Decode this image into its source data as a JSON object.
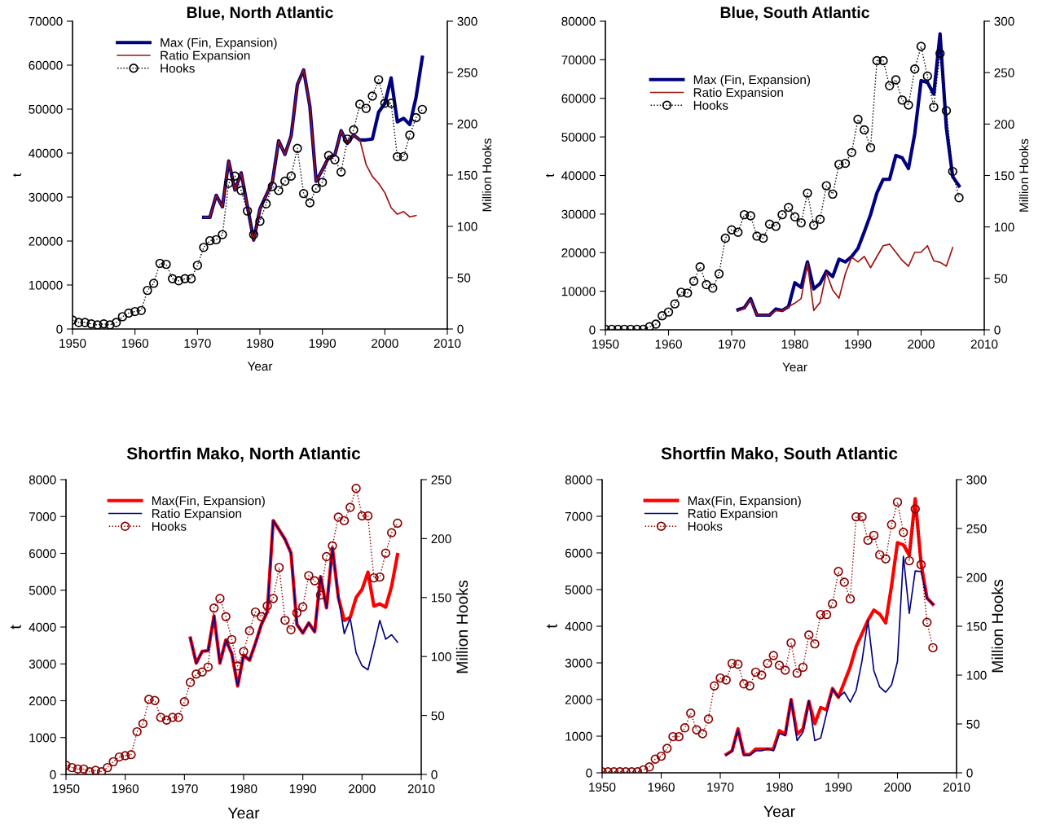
{
  "chart_data": [
    {
      "type": "line",
      "title": "Blue, North Atlantic",
      "xlabel": "Year",
      "ylabel": "t",
      "y2label": "Million Hooks",
      "xlim": [
        1950,
        2010
      ],
      "xticks": [
        1950,
        1960,
        1970,
        1980,
        1990,
        2000,
        2010
      ],
      "ylim": [
        0,
        70000
      ],
      "yticks": [
        0,
        10000,
        20000,
        30000,
        40000,
        50000,
        60000,
        70000
      ],
      "y2lim": [
        0,
        300
      ],
      "y2ticks": [
        0,
        50,
        100,
        150,
        200,
        250,
        300
      ],
      "grid": false,
      "legend": "top left",
      "series": [
        {
          "name": "Max (Fin, Expansion)",
          "color": "#000080",
          "line_style": "solid",
          "marker": "none",
          "x": [
            1971,
            1972,
            1973,
            1974,
            1975,
            1976,
            1977,
            1978,
            1979,
            1980,
            1981,
            1982,
            1983,
            1984,
            1985,
            1986,
            1987,
            1988,
            1989,
            1990,
            1991,
            1992,
            1993,
            1994,
            1995,
            1996,
            1997,
            1998,
            1999,
            2000,
            2001,
            2002,
            2003,
            2004,
            2005,
            2006
          ],
          "values": [
            25400,
            25400,
            30400,
            27800,
            38200,
            31600,
            35500,
            27900,
            20200,
            27300,
            30400,
            33500,
            42800,
            39700,
            43900,
            55600,
            58900,
            50600,
            33600,
            36200,
            39000,
            39600,
            45100,
            42200,
            44100,
            43000,
            43000,
            43200,
            49300,
            51300,
            57100,
            47100,
            47900,
            46500,
            52700,
            61800
          ]
        },
        {
          "name": "Ratio Expansion",
          "color": "#a01010",
          "line_style": "solid",
          "marker": "none",
          "x": [
            1971,
            1972,
            1973,
            1974,
            1975,
            1976,
            1977,
            1978,
            1979,
            1980,
            1981,
            1982,
            1983,
            1984,
            1985,
            1986,
            1987,
            1988,
            1989,
            1990,
            1991,
            1992,
            1993,
            1994,
            1995,
            1996,
            1997,
            1998,
            1999,
            2000,
            2001,
            2002,
            2003,
            2004,
            2005
          ],
          "values": [
            25400,
            25400,
            30400,
            27800,
            38200,
            31600,
            35500,
            27900,
            20000,
            27300,
            30400,
            33500,
            42800,
            39700,
            43900,
            55600,
            58900,
            50600,
            33600,
            36200,
            39000,
            39600,
            45100,
            42200,
            44100,
            43000,
            37400,
            34700,
            33100,
            31000,
            27600,
            26100,
            26700,
            25500,
            25800
          ]
        },
        {
          "name": "Hooks",
          "color": "#000000",
          "axis": "y2",
          "line_style": "dotted",
          "marker": "circle",
          "x": [
            1950,
            1951,
            1952,
            1953,
            1954,
            1955,
            1956,
            1957,
            1958,
            1959,
            1960,
            1961,
            1962,
            1963,
            1964,
            1965,
            1966,
            1967,
            1968,
            1969,
            1970,
            1971,
            1972,
            1973,
            1974,
            1975,
            1976,
            1977,
            1978,
            1979,
            1980,
            1981,
            1982,
            1983,
            1984,
            1985,
            1986,
            1987,
            1988,
            1989,
            1990,
            1991,
            1992,
            1993,
            1994,
            1995,
            1996,
            1997,
            1998,
            1999,
            2000,
            2001,
            2002,
            2003,
            2004,
            2005,
            2006
          ],
          "values": [
            8.7,
            6.3,
            6.3,
            5,
            4,
            5,
            4,
            6.3,
            12,
            15.5,
            17,
            18,
            37.6,
            44.5,
            64,
            63,
            49,
            47,
            49,
            49,
            62,
            79.5,
            86,
            87,
            92,
            142,
            149,
            135,
            115,
            92,
            105,
            122,
            139,
            135,
            144,
            149,
            176,
            132,
            123,
            137,
            143,
            169,
            165,
            153,
            185,
            194,
            219,
            215,
            227,
            243,
            220,
            220,
            168,
            168,
            189,
            206,
            214
          ]
        }
      ]
    },
    {
      "type": "line",
      "title": "Blue, South Atlantic",
      "xlabel": "Year",
      "ylabel": "t",
      "y2label": "Million Hooks",
      "xlim": [
        1950,
        2010
      ],
      "xticks": [
        1950,
        1960,
        1970,
        1980,
        1990,
        2000,
        2010
      ],
      "ylim": [
        0,
        80000
      ],
      "yticks": [
        0,
        10000,
        20000,
        30000,
        40000,
        50000,
        60000,
        70000,
        80000
      ],
      "y2lim": [
        0,
        300
      ],
      "y2ticks": [
        0,
        50,
        100,
        150,
        200,
        250,
        300
      ],
      "grid": false,
      "legend": "top left",
      "series": [
        {
          "name": "Max (Fin, Expansion)",
          "color": "#000080",
          "line_style": "solid",
          "marker": "none",
          "x": [
            1971,
            1972,
            1973,
            1974,
            1975,
            1976,
            1977,
            1978,
            1979,
            1980,
            1981,
            1982,
            1983,
            1984,
            1985,
            1986,
            1987,
            1988,
            1989,
            1990,
            1991,
            1992,
            1993,
            1994,
            1995,
            1996,
            1997,
            1998,
            1999,
            2000,
            2001,
            2002,
            2003,
            2004,
            2005,
            2006
          ],
          "values": [
            5200,
            5700,
            8100,
            3800,
            3800,
            3800,
            5400,
            5000,
            6000,
            12200,
            11000,
            17600,
            10600,
            12000,
            15200,
            13800,
            18300,
            17600,
            19000,
            21100,
            25400,
            29900,
            35500,
            39000,
            39000,
            45200,
            44600,
            41800,
            50900,
            64600,
            64100,
            61100,
            76700,
            52300,
            39700,
            37300
          ]
        },
        {
          "name": "Ratio Expansion",
          "color": "#a01010",
          "line_style": "solid",
          "marker": "none",
          "x": [
            1971,
            1972,
            1973,
            1974,
            1975,
            1976,
            1977,
            1978,
            1979,
            1980,
            1981,
            1982,
            1983,
            1984,
            1985,
            1986,
            1987,
            1988,
            1989,
            1990,
            1991,
            1992,
            1993,
            1994,
            1995,
            1996,
            1997,
            1998,
            1999,
            2000,
            2001,
            2002,
            2003,
            2004,
            2005
          ],
          "values": [
            4900,
            5600,
            7800,
            3800,
            3800,
            3800,
            5000,
            4900,
            6000,
            6900,
            8100,
            17300,
            5000,
            7100,
            14800,
            10300,
            8200,
            14500,
            18800,
            17600,
            19000,
            16100,
            19000,
            21800,
            22200,
            20100,
            18000,
            16500,
            20100,
            20100,
            21800,
            17900,
            17500,
            16500,
            21300
          ]
        },
        {
          "name": "Hooks",
          "color": "#000000",
          "axis": "y2",
          "line_style": "dotted",
          "marker": "circle",
          "x": [
            1950,
            1951,
            1952,
            1953,
            1954,
            1955,
            1956,
            1957,
            1958,
            1959,
            1960,
            1961,
            1962,
            1963,
            1964,
            1965,
            1966,
            1967,
            1968,
            1969,
            1970,
            1971,
            1972,
            1973,
            1974,
            1975,
            1976,
            1977,
            1978,
            1979,
            1980,
            1981,
            1982,
            1983,
            1984,
            1985,
            1986,
            1987,
            1988,
            1989,
            1990,
            1991,
            1992,
            1993,
            1994,
            1995,
            1996,
            1997,
            1998,
            1999,
            2000,
            2001,
            2002,
            2003,
            2004,
            2005,
            2006
          ],
          "values": [
            0.5,
            0.5,
            0.5,
            0.5,
            0.5,
            0.5,
            0.5,
            3,
            5.5,
            13.7,
            17.3,
            25.2,
            36.5,
            35.7,
            47.3,
            61.2,
            43.9,
            40.5,
            54.4,
            89,
            97.2,
            94.8,
            111.9,
            110.8,
            91.1,
            89,
            102.7,
            100.6,
            111.9,
            119,
            109.8,
            104,
            132.9,
            101.7,
            107.4,
            140,
            131.9,
            160.8,
            161.8,
            172.3,
            204.6,
            194.4,
            177,
            261.6,
            261.6,
            237.2,
            243,
            223.3,
            218.5,
            253.5,
            275.5,
            246.6,
            216.4,
            268.5,
            213,
            153.9,
            128.4
          ]
        }
      ]
    },
    {
      "type": "line",
      "title": "Shortfin Mako, North Atlantic",
      "xlabel": "Year",
      "ylabel": "t",
      "y2label": "Million Hooks",
      "xlim": [
        1950,
        2010
      ],
      "xticks": [
        1950,
        1960,
        1970,
        1980,
        1990,
        2000,
        2010
      ],
      "ylim": [
        0,
        8000
      ],
      "yticks": [
        0,
        1000,
        2000,
        3000,
        4000,
        5000,
        6000,
        7000,
        8000
      ],
      "y2lim": [
        0,
        250
      ],
      "y2ticks": [
        0,
        50,
        100,
        150,
        200,
        250
      ],
      "grid": false,
      "legend": "top left",
      "series": [
        {
          "name": "Max(Fin, Expansion)",
          "color": "#ff0000",
          "line_style": "solid",
          "marker": "none",
          "x": [
            1971,
            1972,
            1973,
            1974,
            1975,
            1976,
            1977,
            1978,
            1979,
            1980,
            1981,
            1982,
            1983,
            1984,
            1985,
            1986,
            1987,
            1988,
            1989,
            1990,
            1991,
            1992,
            1993,
            1994,
            1995,
            1996,
            1997,
            1998,
            1999,
            2000,
            2001,
            2002,
            2003,
            2004,
            2005,
            2006
          ],
          "values": [
            3700,
            3020,
            3340,
            3360,
            4300,
            3020,
            3650,
            3280,
            2400,
            3240,
            3100,
            3560,
            4070,
            4410,
            6890,
            6640,
            6380,
            6010,
            4070,
            3840,
            4110,
            3870,
            5370,
            4520,
            6150,
            4800,
            4180,
            4260,
            4800,
            5020,
            5490,
            4570,
            4630,
            4540,
            5110,
            5970
          ]
        },
        {
          "name": "Ratio Expansion",
          "color": "#000080",
          "line_style": "solid",
          "marker": "none",
          "x": [
            1971,
            1972,
            1973,
            1974,
            1975,
            1976,
            1977,
            1978,
            1979,
            1980,
            1981,
            1982,
            1983,
            1984,
            1985,
            1986,
            1987,
            1988,
            1989,
            1990,
            1991,
            1992,
            1993,
            1994,
            1995,
            1996,
            1997,
            1998,
            1999,
            2000,
            2001,
            2002,
            2003,
            2004,
            2005,
            2006
          ],
          "values": [
            3700,
            3020,
            3340,
            3360,
            4300,
            3020,
            3650,
            3280,
            2400,
            3240,
            3100,
            3560,
            4070,
            4410,
            6890,
            6640,
            6380,
            6010,
            4070,
            3840,
            4110,
            3870,
            5370,
            4520,
            6150,
            4800,
            3820,
            4240,
            3300,
            2950,
            2840,
            3480,
            4180,
            3670,
            3790,
            3590
          ]
        },
        {
          "name": "Hooks",
          "color": "#8b0000",
          "axis": "y2",
          "line_style": "dotted",
          "marker": "circle",
          "x": [
            1950,
            1951,
            1952,
            1953,
            1954,
            1955,
            1956,
            1957,
            1958,
            1959,
            1960,
            1961,
            1962,
            1963,
            1964,
            1965,
            1966,
            1967,
            1968,
            1969,
            1970,
            1971,
            1972,
            1973,
            1974,
            1975,
            1976,
            1977,
            1978,
            1979,
            1980,
            1981,
            1982,
            1983,
            1984,
            1985,
            1986,
            1987,
            1988,
            1989,
            1990,
            1991,
            1992,
            1993,
            1994,
            1995,
            1996,
            1997,
            1998,
            1999,
            2000,
            2001,
            2002,
            2003,
            2004,
            2005,
            2006
          ],
          "values": [
            7.8,
            5.8,
            4.6,
            4.6,
            2.3,
            3.5,
            2.3,
            5.8,
            10.8,
            14.8,
            15.9,
            16.8,
            36.2,
            43.1,
            63.7,
            62.7,
            48.4,
            46.1,
            48.4,
            48.4,
            61.6,
            78,
            85.1,
            86.9,
            91.1,
            141.1,
            149.2,
            133.8,
            114.4,
            92,
            104.2,
            121.8,
            137.7,
            133.8,
            143,
            149.2,
            175.5,
            130.8,
            122.7,
            137,
            142.1,
            168.6,
            164.2,
            152.2,
            184.7,
            193.9,
            218.2,
            215.2,
            226.5,
            242.6,
            219.3,
            219.3,
            166.7,
            167.4,
            187.7,
            205,
            213.1
          ]
        }
      ]
    },
    {
      "type": "line",
      "title": "Shortfin Mako, South Atlantic",
      "xlabel": "Year",
      "ylabel": "t",
      "y2label": "Million Hooks",
      "xlim": [
        1950,
        2010
      ],
      "xticks": [
        1950,
        1960,
        1970,
        1980,
        1990,
        2000,
        2010
      ],
      "ylim": [
        0,
        8000
      ],
      "yticks": [
        0,
        1000,
        2000,
        3000,
        4000,
        5000,
        6000,
        7000,
        8000
      ],
      "y2lim": [
        0,
        300
      ],
      "y2ticks": [
        0,
        50,
        100,
        150,
        200,
        250,
        300
      ],
      "grid": false,
      "legend": "top left",
      "series": [
        {
          "name": "Max(Fin, Expansion)",
          "color": "#ff0000",
          "line_style": "solid",
          "marker": "none",
          "x": [
            1971,
            1972,
            1973,
            1974,
            1975,
            1976,
            1977,
            1978,
            1979,
            1980,
            1981,
            1982,
            1983,
            1984,
            1985,
            1986,
            1987,
            1988,
            1989,
            1990,
            1991,
            1992,
            1993,
            1994,
            1995,
            1996,
            1997,
            1998,
            1999,
            2000,
            2001,
            2002,
            2003,
            2004,
            2005,
            2006
          ],
          "values": [
            500,
            600,
            1200,
            500,
            500,
            650,
            650,
            650,
            650,
            1150,
            1050,
            2000,
            1050,
            1200,
            1950,
            1340,
            1780,
            1720,
            2300,
            2060,
            2470,
            2890,
            3440,
            3800,
            4160,
            4440,
            4330,
            4090,
            5110,
            6280,
            6220,
            5940,
            7480,
            5700,
            4770,
            4600
          ]
        },
        {
          "name": "Ratio Expansion",
          "color": "#000080",
          "line_style": "solid",
          "marker": "none",
          "x": [
            1971,
            1972,
            1973,
            1974,
            1975,
            1976,
            1977,
            1978,
            1979,
            1980,
            1981,
            1982,
            1983,
            1984,
            1985,
            1986,
            1987,
            1988,
            1989,
            1990,
            1991,
            1992,
            1993,
            1994,
            1995,
            1996,
            1997,
            1998,
            1999,
            2000,
            2001,
            2002,
            2003,
            2004,
            2005,
            2006
          ],
          "values": [
            480,
            600,
            1170,
            480,
            480,
            600,
            600,
            650,
            600,
            1080,
            1010,
            2000,
            880,
            1110,
            1970,
            880,
            950,
            1620,
            2290,
            2060,
            2200,
            1930,
            2250,
            3060,
            4160,
            2790,
            2340,
            2200,
            2400,
            3040,
            5910,
            4350,
            5510,
            5490,
            4770,
            4600
          ]
        },
        {
          "name": "Hooks",
          "color": "#8b0000",
          "axis": "y2",
          "line_style": "dotted",
          "marker": "circle",
          "x": [
            1950,
            1951,
            1952,
            1953,
            1954,
            1955,
            1956,
            1957,
            1958,
            1959,
            1960,
            1961,
            1962,
            1963,
            1964,
            1965,
            1966,
            1967,
            1968,
            1969,
            1970,
            1971,
            1972,
            1973,
            1974,
            1975,
            1976,
            1977,
            1978,
            1979,
            1980,
            1981,
            1982,
            1983,
            1984,
            1985,
            1986,
            1987,
            1988,
            1989,
            1990,
            1991,
            1992,
            1993,
            1994,
            1995,
            1996,
            1997,
            1998,
            1999,
            2000,
            2001,
            2002,
            2003,
            2004,
            2005,
            2006
          ],
          "values": [
            1,
            1,
            1,
            1,
            1,
            1,
            1,
            3,
            6,
            14,
            17,
            25,
            37,
            37,
            46,
            61,
            44,
            40,
            55,
            89,
            97,
            95,
            112,
            111,
            91,
            89,
            103,
            100,
            112,
            120,
            110,
            105,
            133,
            102,
            108,
            141,
            132,
            162,
            162,
            173,
            206,
            195,
            178,
            262,
            262,
            238,
            243,
            223,
            219,
            254,
            277,
            246,
            217,
            270,
            213,
            154,
            128
          ]
        }
      ]
    }
  ]
}
